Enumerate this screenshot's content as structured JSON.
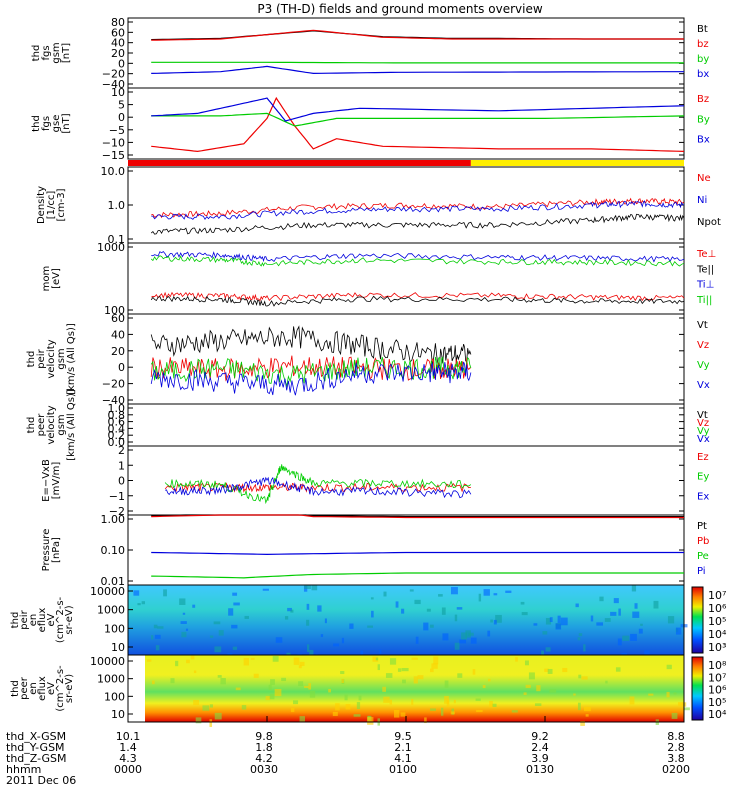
{
  "title": "P3 (TH-D) fields and ground moments overview",
  "date_label": "2011 Dec 06",
  "colors": {
    "black": "#000000",
    "red": "#ee0000",
    "green": "#00cc00",
    "blue": "#0000dd",
    "yellow": "#ffee00"
  },
  "footer": {
    "row_labels": [
      "thd_X-GSM",
      "thd_Y-GSM",
      "thd_Z-GSM",
      "hhmm"
    ],
    "columns": [
      [
        "10.1",
        "1.4",
        "4.3",
        "0000"
      ],
      [
        "9.8",
        "1.8",
        "4.2",
        "0030"
      ],
      [
        "9.5",
        "2.1",
        "4.1",
        "0100"
      ],
      [
        "9.2",
        "2.4",
        "3.9",
        "0130"
      ],
      [
        "8.8",
        "2.8",
        "3.8",
        "0200"
      ]
    ]
  },
  "chart_data": [
    {
      "type": "line",
      "id": "fgs_gsm",
      "ylabel": [
        "thd",
        "fgs",
        "gsm",
        "[nT]"
      ],
      "ylim": [
        -40,
        80
      ],
      "yticks": [
        "80",
        "60",
        "40",
        "20",
        "0",
        "−20",
        "−40"
      ],
      "legend": [
        "Bt",
        "bz",
        "by",
        "bx"
      ],
      "series": [
        {
          "name": "Bt",
          "color": "black",
          "t": [
            5,
            20,
            40,
            55,
            70,
            80,
            100,
            120
          ],
          "v": [
            43,
            45,
            58,
            48,
            45,
            45,
            44,
            44
          ]
        },
        {
          "name": "bz",
          "color": "red",
          "t": [
            5,
            20,
            40,
            55,
            70,
            80,
            100,
            120
          ],
          "v": [
            42,
            44,
            59,
            47,
            44,
            44,
            44,
            44
          ]
        },
        {
          "name": "by",
          "color": "green",
          "t": [
            5,
            30,
            60,
            120
          ],
          "v": [
            4,
            4,
            3,
            3
          ]
        },
        {
          "name": "bx",
          "color": "blue",
          "t": [
            5,
            20,
            30,
            40,
            60,
            120
          ],
          "v": [
            -15,
            -12,
            -3,
            -15,
            -13,
            -12
          ]
        }
      ]
    },
    {
      "type": "line",
      "id": "fgs_gse",
      "ylabel": [
        "thd",
        "fgs",
        "gse",
        "[nT]"
      ],
      "ylim": [
        -18,
        10
      ],
      "yticks": [
        "10",
        "5",
        "0",
        "−5",
        "−10",
        "−15"
      ],
      "legend": [
        "Bz",
        "By",
        "Bx"
      ],
      "series": [
        {
          "name": "Bz",
          "color": "red",
          "t": [
            5,
            15,
            25,
            30,
            32,
            36,
            40,
            45,
            55,
            80,
            100,
            120
          ],
          "v": [
            -13,
            -15,
            -12,
            -2,
            6,
            -5,
            -14,
            -10,
            -13,
            -14,
            -14,
            -15
          ]
        },
        {
          "name": "By",
          "color": "green",
          "t": [
            5,
            20,
            30,
            36,
            45,
            60,
            90,
            120
          ],
          "v": [
            -1,
            -1,
            0,
            -5,
            -2,
            -2,
            -2,
            -1
          ]
        },
        {
          "name": "Bx",
          "color": "blue",
          "t": [
            5,
            15,
            25,
            30,
            34,
            40,
            50,
            80,
            100,
            120
          ],
          "v": [
            -1,
            0,
            4,
            6,
            -3,
            0,
            2,
            1,
            2,
            3
          ]
        }
      ]
    },
    {
      "type": "bar",
      "id": "mode_bar",
      "segments": [
        {
          "t0": 0,
          "t1": 74,
          "color": "red"
        },
        {
          "t0": 74,
          "t1": 120,
          "color": "yellow"
        }
      ]
    },
    {
      "type": "line",
      "id": "density",
      "log": true,
      "ylabel": [
        "Density",
        "[1/cc]",
        "[cm-3]"
      ],
      "ylim": [
        0.1,
        10
      ],
      "yticks": [
        "10.0",
        "1.0",
        "0.1"
      ],
      "legend": [
        "Ne",
        "Ni",
        "Npot"
      ],
      "series": [
        {
          "name": "Ne",
          "color": "red",
          "t": [
            5,
            20,
            40,
            60,
            80,
            100,
            110,
            120
          ],
          "v": [
            0.55,
            0.6,
            0.9,
            1.0,
            0.9,
            1.2,
            1.3,
            1.2
          ]
        },
        {
          "name": "Ni",
          "color": "blue",
          "t": [
            5,
            20,
            40,
            60,
            80,
            100,
            110,
            120
          ],
          "v": [
            0.5,
            0.5,
            0.7,
            0.8,
            0.8,
            1.0,
            1.1,
            1.0
          ]
        },
        {
          "name": "Npot",
          "color": "black",
          "t": [
            5,
            20,
            40,
            60,
            80,
            100,
            110,
            120
          ],
          "v": [
            0.2,
            0.22,
            0.3,
            0.3,
            0.3,
            0.4,
            0.5,
            0.45
          ]
        }
      ]
    },
    {
      "type": "line",
      "id": "temperature",
      "log": true,
      "ylabel": [
        "mom",
        "[eV]"
      ],
      "ylim": [
        100,
        10000
      ],
      "yticks": [
        "1000",
        "100"
      ],
      "legend": [
        "Te⊥",
        "Te||",
        "Ti⊥",
        "Ti||"
      ],
      "series": [
        {
          "name": "Te⊥",
          "color": "red",
          "t": [
            5,
            20,
            30,
            50,
            80,
            100,
            120
          ],
          "v": [
            350,
            330,
            280,
            350,
            330,
            300,
            280
          ]
        },
        {
          "name": "Te||",
          "color": "black",
          "t": [
            5,
            20,
            30,
            50,
            80,
            100,
            120
          ],
          "v": [
            280,
            260,
            200,
            270,
            260,
            230,
            230
          ]
        },
        {
          "name": "Ti⊥",
          "color": "blue",
          "t": [
            5,
            20,
            30,
            50,
            80,
            100,
            120
          ],
          "v": [
            5000,
            4600,
            3500,
            4500,
            4000,
            3800,
            3500
          ]
        },
        {
          "name": "Ti||",
          "color": "green",
          "t": [
            5,
            20,
            30,
            50,
            80,
            100,
            120
          ],
          "v": [
            3800,
            3400,
            2600,
            3300,
            3000,
            2900,
            2700
          ]
        }
      ]
    },
    {
      "type": "line",
      "id": "peir_velocity",
      "ylabel": [
        "thd",
        "peir",
        "velocity",
        "gsm",
        "[km/s (All Qs)]"
      ],
      "ylim": [
        -40,
        60
      ],
      "yticks": [
        "60",
        "40",
        "20",
        "0",
        "−20",
        "−40"
      ],
      "legend": [
        "Vt",
        "Vz",
        "Vy",
        "Vx"
      ],
      "series": [
        {
          "name": "Vt",
          "color": "black",
          "t": [
            5,
            20,
            35,
            50,
            65,
            74
          ],
          "v": [
            25,
            30,
            35,
            25,
            15,
            15
          ]
        },
        {
          "name": "Vz",
          "color": "red",
          "t": [
            5,
            20,
            35,
            50,
            65,
            74
          ],
          "v": [
            0,
            -2,
            2,
            0,
            -2,
            0
          ]
        },
        {
          "name": "Vy",
          "color": "green",
          "t": [
            5,
            20,
            35,
            50,
            65,
            74
          ],
          "v": [
            -5,
            0,
            -8,
            0,
            0,
            0
          ]
        },
        {
          "name": "Vx",
          "color": "blue",
          "t": [
            5,
            20,
            35,
            50,
            65,
            74
          ],
          "v": [
            -10,
            -15,
            -20,
            -5,
            -5,
            -5
          ]
        }
      ]
    },
    {
      "type": "line",
      "id": "peer_velocity",
      "ylabel": [
        "thd",
        "peer",
        "velocity",
        "gsm",
        "[km/s (All Qs)]"
      ],
      "ylim": [
        0,
        1
      ],
      "yticks": [
        "1.0",
        "0.8",
        "0.6",
        "0.4",
        "0.2",
        "0.0"
      ],
      "legend": [
        "Vt",
        "Vz",
        "Vy",
        "Vx"
      ],
      "series": []
    },
    {
      "type": "line",
      "id": "efield",
      "ylabel": [
        "E=−VxB",
        "[mV/m]"
      ],
      "ylim": [
        -2,
        3
      ],
      "yticks": [
        "2",
        "1",
        "0",
        "−1",
        "−2"
      ],
      "legend": [
        "Ez",
        "Ey",
        "Ex"
      ],
      "series": [
        {
          "name": "Ez",
          "color": "red",
          "t": [
            8,
            20,
            30,
            40,
            55,
            74
          ],
          "v": [
            0,
            0,
            0,
            0,
            0,
            0
          ]
        },
        {
          "name": "Ey",
          "color": "green",
          "t": [
            8,
            20,
            30,
            33,
            40,
            55,
            74
          ],
          "v": [
            0.3,
            0.2,
            -1.0,
            1.5,
            0.3,
            0.3,
            0.2
          ]
        },
        {
          "name": "Ex",
          "color": "blue",
          "t": [
            8,
            20,
            30,
            40,
            55,
            74
          ],
          "v": [
            -0.3,
            -0.2,
            0.5,
            -0.3,
            -0.3,
            -0.5
          ]
        }
      ]
    },
    {
      "type": "line",
      "id": "pressure",
      "log": true,
      "ylabel": [
        "Pressure",
        "[nPa]"
      ],
      "ylim": [
        0.01,
        1.0
      ],
      "yticks": [
        "1.00",
        "0.10",
        "0.01"
      ],
      "legend": [
        "Pt",
        "Pb",
        "Pe",
        "Pi"
      ],
      "series": [
        {
          "name": "Pt",
          "color": "black",
          "t": [
            5,
            20,
            30,
            40,
            60,
            120
          ],
          "v": [
            0.95,
            1.05,
            1.3,
            0.95,
            0.9,
            0.9
          ]
        },
        {
          "name": "Pb",
          "color": "red",
          "t": [
            5,
            20,
            30,
            40,
            60,
            120
          ],
          "v": [
            0.9,
            1.0,
            1.25,
            0.9,
            0.85,
            0.85
          ]
        },
        {
          "name": "Pe",
          "color": "green",
          "t": [
            5,
            25,
            40,
            60,
            120
          ],
          "v": [
            0.018,
            0.016,
            0.02,
            0.022,
            0.022
          ]
        },
        {
          "name": "Pi",
          "color": "blue",
          "t": [
            5,
            30,
            60,
            120
          ],
          "v": [
            0.085,
            0.075,
            0.085,
            0.085
          ]
        }
      ]
    },
    {
      "type": "heatmap",
      "id": "peir_eflux",
      "ylabel": [
        "thd",
        "peir",
        "en",
        "eflux",
        "eV",
        "(cm^2-s-",
        "sr-eV)"
      ],
      "yticks": [
        "10000",
        "1000",
        "100",
        "10"
      ],
      "colorbar_ticks": [
        "10⁷",
        "10⁶",
        "10⁵",
        "10⁴",
        "10³"
      ]
    },
    {
      "type": "heatmap",
      "id": "peer_eflux",
      "ylabel": [
        "thd",
        "peer",
        "en",
        "eflux",
        "eV",
        "(cm^2-s-",
        "sr-eV)"
      ],
      "yticks": [
        "10000",
        "1000",
        "100",
        "10"
      ],
      "colorbar_ticks": [
        "10⁸",
        "10⁷",
        "10⁶",
        "10⁵",
        "10⁴"
      ]
    }
  ]
}
